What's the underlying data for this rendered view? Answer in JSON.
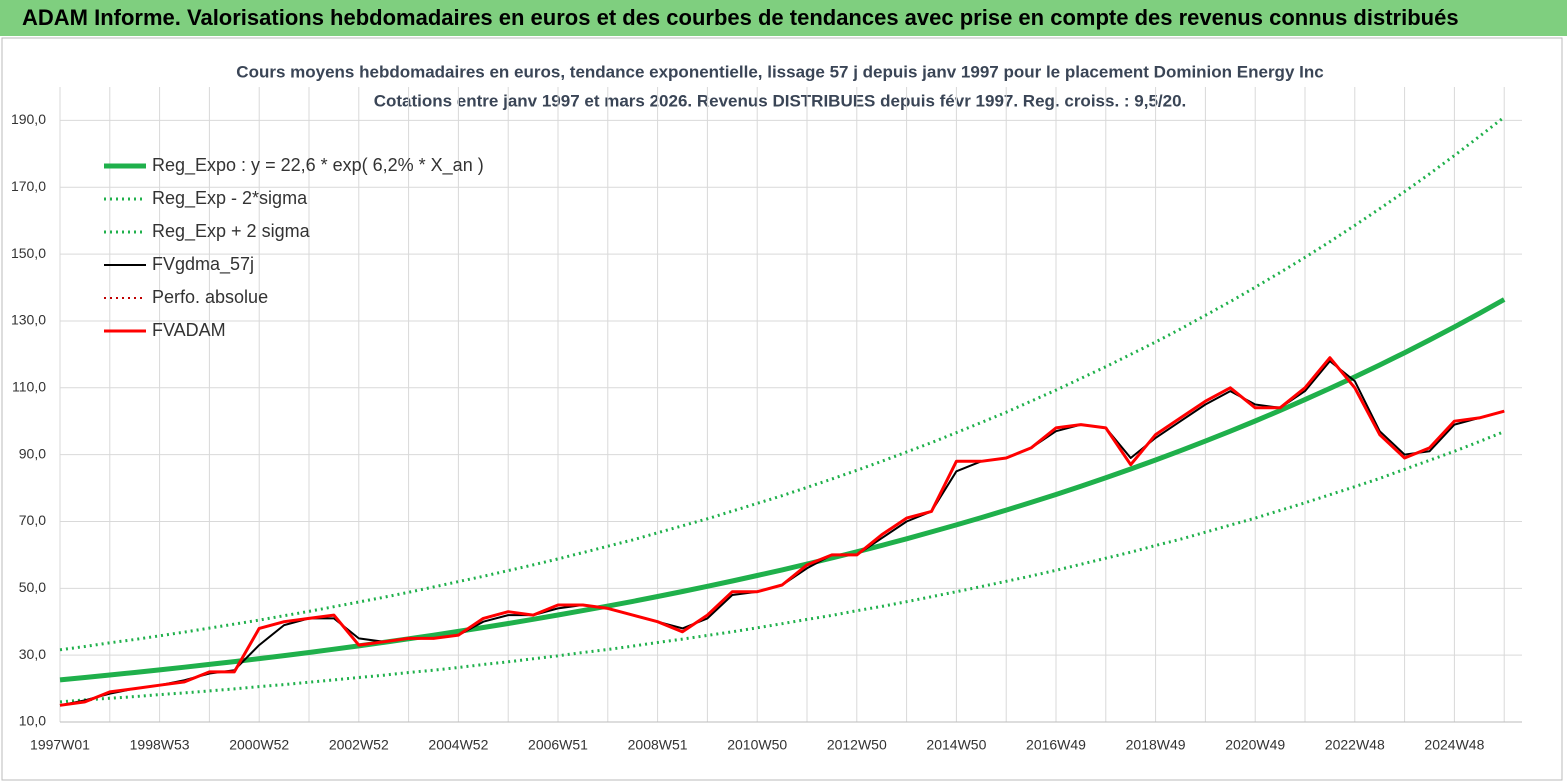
{
  "header": {
    "title": "ADAM Informe. Valorisations hebdomadaires en euros et des courbes de tendances avec prise en compte des revenus connus distribués"
  },
  "chart_data": {
    "type": "line",
    "title": "Cours moyens hebdomadaires en euros, tendance exponentielle, lissage 57 j depuis janv 1997 pour le placement Dominion Energy Inc",
    "subtitle": "Cotations entre janv 1997 et mars 2026. Revenus DISTRIBUES depuis févr 1997. Reg. croiss. : 9,5/20.",
    "categories": [
      "1997W01",
      null,
      null,
      null,
      "1998W53",
      null,
      null,
      null,
      "2000W52",
      null,
      null,
      null,
      "2002W52",
      null,
      null,
      null,
      "2004W52",
      null,
      null,
      null,
      "2006W51",
      null,
      null,
      null,
      "2008W51",
      null,
      null,
      null,
      "2010W50",
      null,
      null,
      null,
      "2012W50",
      null,
      null,
      null,
      "2014W50",
      null,
      null,
      null,
      "2016W49",
      null,
      null,
      null,
      "2018W49",
      null,
      null,
      null,
      "2020W49",
      null,
      null,
      null,
      "2022W48",
      null,
      null,
      null,
      "2024W48",
      null,
      null
    ],
    "ylim": [
      10,
      200
    ],
    "yticks": [
      {
        "value": 10,
        "label": "10,0"
      },
      {
        "value": 30,
        "label": "30,0"
      },
      {
        "value": 50,
        "label": "50,0"
      },
      {
        "value": 70,
        "label": "70,0"
      },
      {
        "value": 90,
        "label": "90,0"
      },
      {
        "value": 110,
        "label": "110,0"
      },
      {
        "value": 130,
        "label": "130,0"
      },
      {
        "value": 150,
        "label": "150,0"
      },
      {
        "value": 170,
        "label": "170,0"
      },
      {
        "value": 190,
        "label": "190,0"
      }
    ],
    "grid": true,
    "legend": "upper left",
    "series": [
      {
        "name": "Reg_Expo : y = 22,6 * exp( 6,2% *  X_an )",
        "color": "#1fb04b",
        "style": "solid",
        "width": 5,
        "values": [
          22.6,
          23.31,
          24.05,
          24.8,
          25.58,
          26.39,
          27.22,
          28.08,
          28.96,
          29.87,
          30.81,
          31.78,
          32.78,
          33.81,
          34.88,
          35.97,
          37.11,
          38.28,
          39.48,
          40.72,
          42.01,
          43.33,
          44.69,
          46.1,
          47.55,
          49.05,
          50.59,
          52.18,
          53.83,
          55.52,
          57.27,
          59.07,
          60.93,
          62.85,
          64.83,
          66.87,
          68.97,
          71.15,
          73.39,
          75.7,
          78.08,
          80.54,
          83.08,
          85.69,
          88.39,
          91.17,
          94.04,
          97.0,
          100.06,
          103.21,
          106.46,
          109.81,
          113.27,
          116.83,
          120.51,
          124.31,
          128.22,
          132.26,
          136.42
        ]
      },
      {
        "name": "Reg_Exp - 2*sigma",
        "color": "#1fb04b",
        "style": "dotted",
        "width": 3,
        "values": [
          16.0,
          16.6,
          17.1,
          17.6,
          18.2,
          18.7,
          19.3,
          19.9,
          20.6,
          21.2,
          21.9,
          22.6,
          23.3,
          24.0,
          24.8,
          25.5,
          26.3,
          27.2,
          28.0,
          28.9,
          29.8,
          30.8,
          31.7,
          32.7,
          33.8,
          34.8,
          35.9,
          37.0,
          38.2,
          39.4,
          40.7,
          41.9,
          43.3,
          44.6,
          46.0,
          47.5,
          49.0,
          50.5,
          52.1,
          53.7,
          55.4,
          57.2,
          59.0,
          60.8,
          62.8,
          64.7,
          66.8,
          68.9,
          71.0,
          73.3,
          75.6,
          78.0,
          80.4,
          82.9,
          85.6,
          88.3,
          91.0,
          93.9,
          96.9
        ]
      },
      {
        "name": "Reg_Exp + 2 sigma",
        "color": "#1fb04b",
        "style": "dotted",
        "width": 3,
        "values": [
          31.6,
          32.6,
          33.7,
          34.7,
          35.8,
          36.9,
          38.1,
          39.3,
          40.5,
          41.8,
          43.1,
          44.5,
          45.9,
          47.3,
          48.8,
          50.4,
          52.0,
          53.6,
          55.3,
          57.0,
          58.8,
          60.7,
          62.6,
          64.5,
          66.6,
          68.7,
          70.8,
          73.1,
          75.4,
          77.7,
          80.2,
          82.7,
          85.3,
          88.0,
          90.8,
          93.6,
          96.6,
          99.6,
          102.7,
          106.0,
          109.3,
          112.8,
          116.3,
          120.0,
          123.7,
          127.6,
          131.7,
          135.8,
          140.1,
          144.5,
          149.0,
          153.7,
          158.6,
          163.6,
          168.7,
          174.0,
          179.5,
          185.2,
          191.0
        ]
      },
      {
        "name": "FVgdma_57j",
        "color": "#000000",
        "style": "solid",
        "width": 2,
        "values": [
          15,
          16.5,
          18.5,
          20,
          21,
          22.5,
          24.5,
          25.5,
          33,
          39,
          41,
          41,
          35,
          34,
          35,
          35,
          36,
          40,
          42,
          42,
          44,
          45,
          44,
          42,
          40,
          38,
          41,
          48,
          49,
          51,
          56,
          60,
          60,
          65,
          70,
          73,
          85,
          88,
          89,
          92,
          97,
          99,
          98,
          89,
          95,
          100,
          105,
          109,
          105,
          104,
          109,
          118,
          112,
          97,
          90,
          91,
          99,
          101,
          103
        ]
      },
      {
        "name": "Perfo. absolue",
        "color": "#c00000",
        "style": "dotted",
        "width": 2,
        "values": [
          15,
          16,
          19,
          20,
          21,
          22,
          25,
          25,
          38,
          40,
          41,
          42,
          33,
          34,
          35,
          35,
          36,
          41,
          43,
          42,
          45,
          45,
          44,
          42,
          40,
          37,
          42,
          49,
          49,
          51,
          57,
          60,
          60,
          66,
          71,
          73,
          88,
          88,
          89,
          92,
          98,
          99,
          98,
          87,
          96,
          101,
          106,
          110,
          104,
          104,
          110,
          119,
          110,
          96,
          89,
          92,
          100,
          101,
          103
        ]
      },
      {
        "name": "FVADAM",
        "color": "#ff0000",
        "style": "solid",
        "width": 3,
        "values": [
          15,
          16,
          19,
          20,
          21,
          22,
          25,
          25,
          38,
          40,
          41,
          42,
          33,
          34,
          35,
          35,
          36,
          41,
          43,
          42,
          45,
          45,
          44,
          42,
          40,
          37,
          42,
          49,
          49,
          51,
          57,
          60,
          60,
          66,
          71,
          73,
          88,
          88,
          89,
          92,
          98,
          99,
          98,
          87,
          96,
          101,
          106,
          110,
          104,
          104,
          110,
          119,
          110,
          96,
          89,
          92,
          100,
          101,
          103
        ]
      }
    ]
  }
}
